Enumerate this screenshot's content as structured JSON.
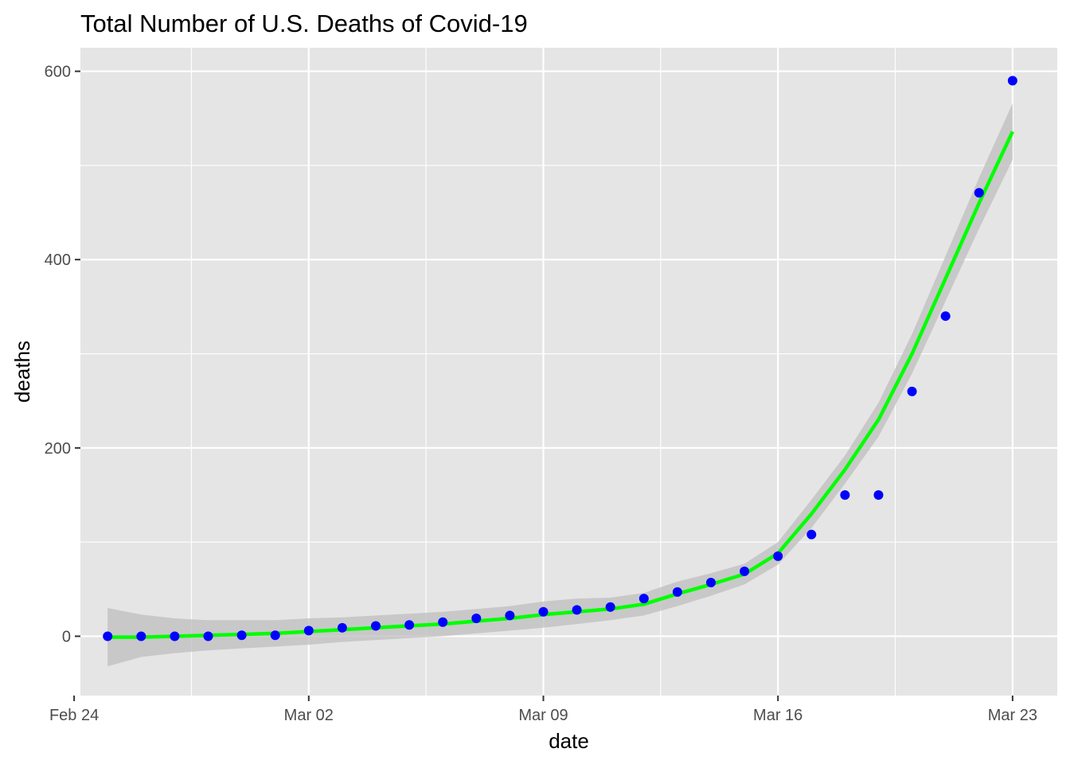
{
  "chart_data": {
    "type": "scatter",
    "title": "Total Number of U.S. Deaths of Covid-19",
    "xlabel": "date",
    "ylabel": "deaths",
    "x_ticks": [
      {
        "date": "2020-02-24",
        "label": "Feb 24"
      },
      {
        "date": "2020-03-02",
        "label": "Mar 02"
      },
      {
        "date": "2020-03-09",
        "label": "Mar 09"
      },
      {
        "date": "2020-03-16",
        "label": "Mar 16"
      },
      {
        "date": "2020-03-23",
        "label": "Mar 23"
      }
    ],
    "x_minor_ticks": [
      "2020-02-27T12:00",
      "2020-03-05T12:00",
      "2020-03-12T12:00",
      "2020-03-19T12:00"
    ],
    "xlim": [
      "2020-02-24T04:30",
      "2020-03-24T08:00"
    ],
    "y_ticks": [
      0,
      200,
      400,
      600
    ],
    "y_minor_ticks": [
      100,
      300,
      500
    ],
    "ylim": [
      -63,
      625
    ],
    "grid": true,
    "colors": {
      "panel": "#e5e5e5",
      "grid": "#ffffff",
      "points": "#0000ff",
      "smooth_line": "#00ff00",
      "confidence_band": "#bdbdbd"
    },
    "series": [
      {
        "type": "scatter",
        "x": [
          "2020-02-25",
          "2020-02-26",
          "2020-02-27",
          "2020-02-28",
          "2020-02-29",
          "2020-03-01",
          "2020-03-02",
          "2020-03-03",
          "2020-03-04",
          "2020-03-05",
          "2020-03-06",
          "2020-03-07",
          "2020-03-08",
          "2020-03-09",
          "2020-03-10",
          "2020-03-11",
          "2020-03-12",
          "2020-03-13",
          "2020-03-14",
          "2020-03-15",
          "2020-03-16",
          "2020-03-17",
          "2020-03-18",
          "2020-03-19",
          "2020-03-20",
          "2020-03-21",
          "2020-03-22",
          "2020-03-23"
        ],
        "values": [
          0,
          0,
          0,
          0,
          1,
          1,
          6,
          9,
          11,
          12,
          15,
          19,
          22,
          26,
          28,
          31,
          40,
          47,
          57,
          69,
          85,
          108,
          150,
          150,
          260,
          340,
          471,
          590
        ]
      },
      {
        "type": "line",
        "x": [
          "2020-02-25",
          "2020-02-26",
          "2020-02-27",
          "2020-02-28",
          "2020-02-29",
          "2020-03-01",
          "2020-03-02",
          "2020-03-03",
          "2020-03-04",
          "2020-03-05",
          "2020-03-06",
          "2020-03-07",
          "2020-03-08",
          "2020-03-09",
          "2020-03-10",
          "2020-03-11",
          "2020-03-12",
          "2020-03-13",
          "2020-03-14",
          "2020-03-15",
          "2020-03-16",
          "2020-03-17",
          "2020-03-18",
          "2020-03-19",
          "2020-03-20",
          "2020-03-21",
          "2020-03-22",
          "2020-03-23"
        ],
        "values": [
          -1,
          -1,
          0,
          1,
          2,
          3,
          5,
          7,
          9,
          11,
          13,
          16,
          19,
          23,
          26,
          29,
          34,
          45,
          55,
          66,
          88,
          130,
          177,
          230,
          300,
          380,
          460,
          536
        ],
        "lower": [
          -32,
          -22,
          -18,
          -15,
          -13,
          -11,
          -9,
          -6,
          -4,
          -2,
          0,
          3,
          6,
          9,
          13,
          17,
          22,
          32,
          43,
          55,
          76,
          115,
          162,
          212,
          279,
          356,
          433,
          506
        ],
        "upper": [
          30,
          23,
          19,
          17,
          17,
          17,
          19,
          20,
          22,
          24,
          26,
          29,
          32,
          37,
          40,
          41,
          46,
          58,
          67,
          77,
          100,
          145,
          192,
          248,
          321,
          404,
          487,
          566
        ]
      }
    ]
  }
}
